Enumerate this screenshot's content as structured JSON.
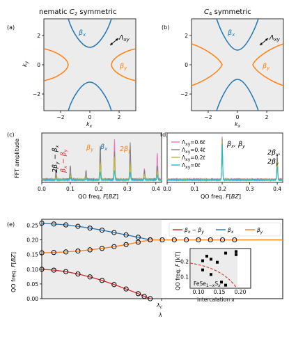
{
  "figure": {
    "panels": [
      "(a)",
      "(b)",
      "(c)",
      "(d)",
      "(e)"
    ],
    "titles": [
      "nematic C2 symmetric",
      "C4 symmetric"
    ],
    "colors": {
      "beta_x": "#1f77b4",
      "beta_y": "#ff7f0e",
      "diff": "#d62728",
      "gray_bg": "#ececec"
    }
  },
  "chart_data": [
    {
      "id": "a",
      "type": "line",
      "title": "nematic C2 symmetric",
      "xlabel": "kx",
      "ylabel": "ky",
      "xlim": [
        -3.14,
        3.14
      ],
      "ylim": [
        -3.14,
        3.14
      ],
      "xticks": [
        "−2",
        "0",
        "2"
      ],
      "yticks": [
        "−2",
        "0",
        "2"
      ],
      "labels": [
        "βx",
        "βy",
        "Λxy"
      ]
    },
    {
      "id": "b",
      "type": "line",
      "title": "C4 symmetric",
      "xlabel": "kx",
      "xlim": [
        -3.14,
        3.14
      ],
      "ylim": [
        -3.14,
        3.14
      ],
      "xticks": [
        "−2",
        "0",
        "2"
      ],
      "yticks": [
        "−2",
        "0",
        "2"
      ],
      "labels": [
        "βx",
        "βy",
        "Λxy"
      ]
    },
    {
      "id": "c",
      "type": "line",
      "xlabel": "QO freq. F[BZ]",
      "ylabel": "FFT amplitude",
      "xlim": [
        0,
        0.42
      ],
      "xticks": [
        "0.0",
        "0.1",
        "0.2",
        "0.3",
        "0.4"
      ],
      "annotations": [
        "2βy − βx",
        "βx − βy",
        "βy",
        "βx",
        "2βy"
      ],
      "peaks": [
        0.05,
        0.1,
        0.155,
        0.205,
        0.255,
        0.31,
        0.36,
        0.405
      ]
    },
    {
      "id": "d",
      "type": "line",
      "xlabel": "QO freq. F[BZ]",
      "xlim": [
        0,
        0.42
      ],
      "xticks": [
        "0.0",
        "0.1",
        "0.2",
        "0.3",
        "0.4"
      ],
      "legend": [
        "Λxy=0.6t",
        "Λxy=0.4t",
        "Λxy=0.2t",
        "Λxy=0t"
      ],
      "annotations": [
        "βx, βy",
        "2βx,",
        "2βy"
      ],
      "peaks": [
        0.2,
        0.4
      ]
    },
    {
      "id": "e",
      "type": "line",
      "xlabel": "λ",
      "ylabel": "QO freq. F[BZ]",
      "ylim": [
        0,
        0.27
      ],
      "yticks": [
        "0.00",
        "0.05",
        "0.10",
        "0.15",
        "0.20",
        "0.25"
      ],
      "critical_label": "λc",
      "legend": [
        "βx − βy",
        "βx",
        "βy"
      ],
      "series": [
        {
          "name": "βx − βy",
          "x": [
            0,
            0.1,
            0.2,
            0.3,
            0.4,
            0.5,
            0.6,
            0.7,
            0.8,
            0.85,
            0.9
          ],
          "y": [
            0.1,
            0.097,
            0.092,
            0.084,
            0.074,
            0.062,
            0.048,
            0.033,
            0.017,
            0.008,
            0.0
          ]
        },
        {
          "name": "βx",
          "x": [
            0,
            0.1,
            0.2,
            0.3,
            0.4,
            0.5,
            0.6,
            0.7,
            0.8,
            0.9
          ],
          "y": [
            0.257,
            0.254,
            0.251,
            0.246,
            0.24,
            0.233,
            0.225,
            0.217,
            0.209,
            0.2
          ]
        },
        {
          "name": "βy",
          "x": [
            0,
            0.1,
            0.2,
            0.3,
            0.4,
            0.5,
            0.6,
            0.7,
            0.8,
            0.9,
            1.0,
            1.1,
            1.2,
            1.3,
            1.4,
            1.5,
            1.6
          ],
          "y": [
            0.156,
            0.157,
            0.159,
            0.162,
            0.166,
            0.171,
            0.177,
            0.184,
            0.192,
            0.2,
            0.2,
            0.2,
            0.2,
            0.2,
            0.2,
            0.2,
            0.2
          ]
        }
      ],
      "inset": {
        "xlabel": "intercalation x",
        "ylabel": "QO freq. F [kT]",
        "xticks": [
          "0.10",
          "0.15",
          "0.20"
        ],
        "yticks": [
          "0.1",
          "0.2"
        ],
        "label": "FeSe1−xSx",
        "points": [
          [
            0.11,
            0.21
          ],
          [
            0.12,
            0.24
          ],
          [
            0.13,
            0.22
          ],
          [
            0.145,
            0.2
          ],
          [
            0.165,
            0.26
          ],
          [
            0.19,
            0.25
          ],
          [
            0.19,
            0.27
          ],
          [
            0.11,
            0.15
          ],
          [
            0.13,
            0.12
          ],
          [
            0.155,
            0.07
          ],
          [
            0.165,
            0.05
          ]
        ]
      }
    }
  ]
}
